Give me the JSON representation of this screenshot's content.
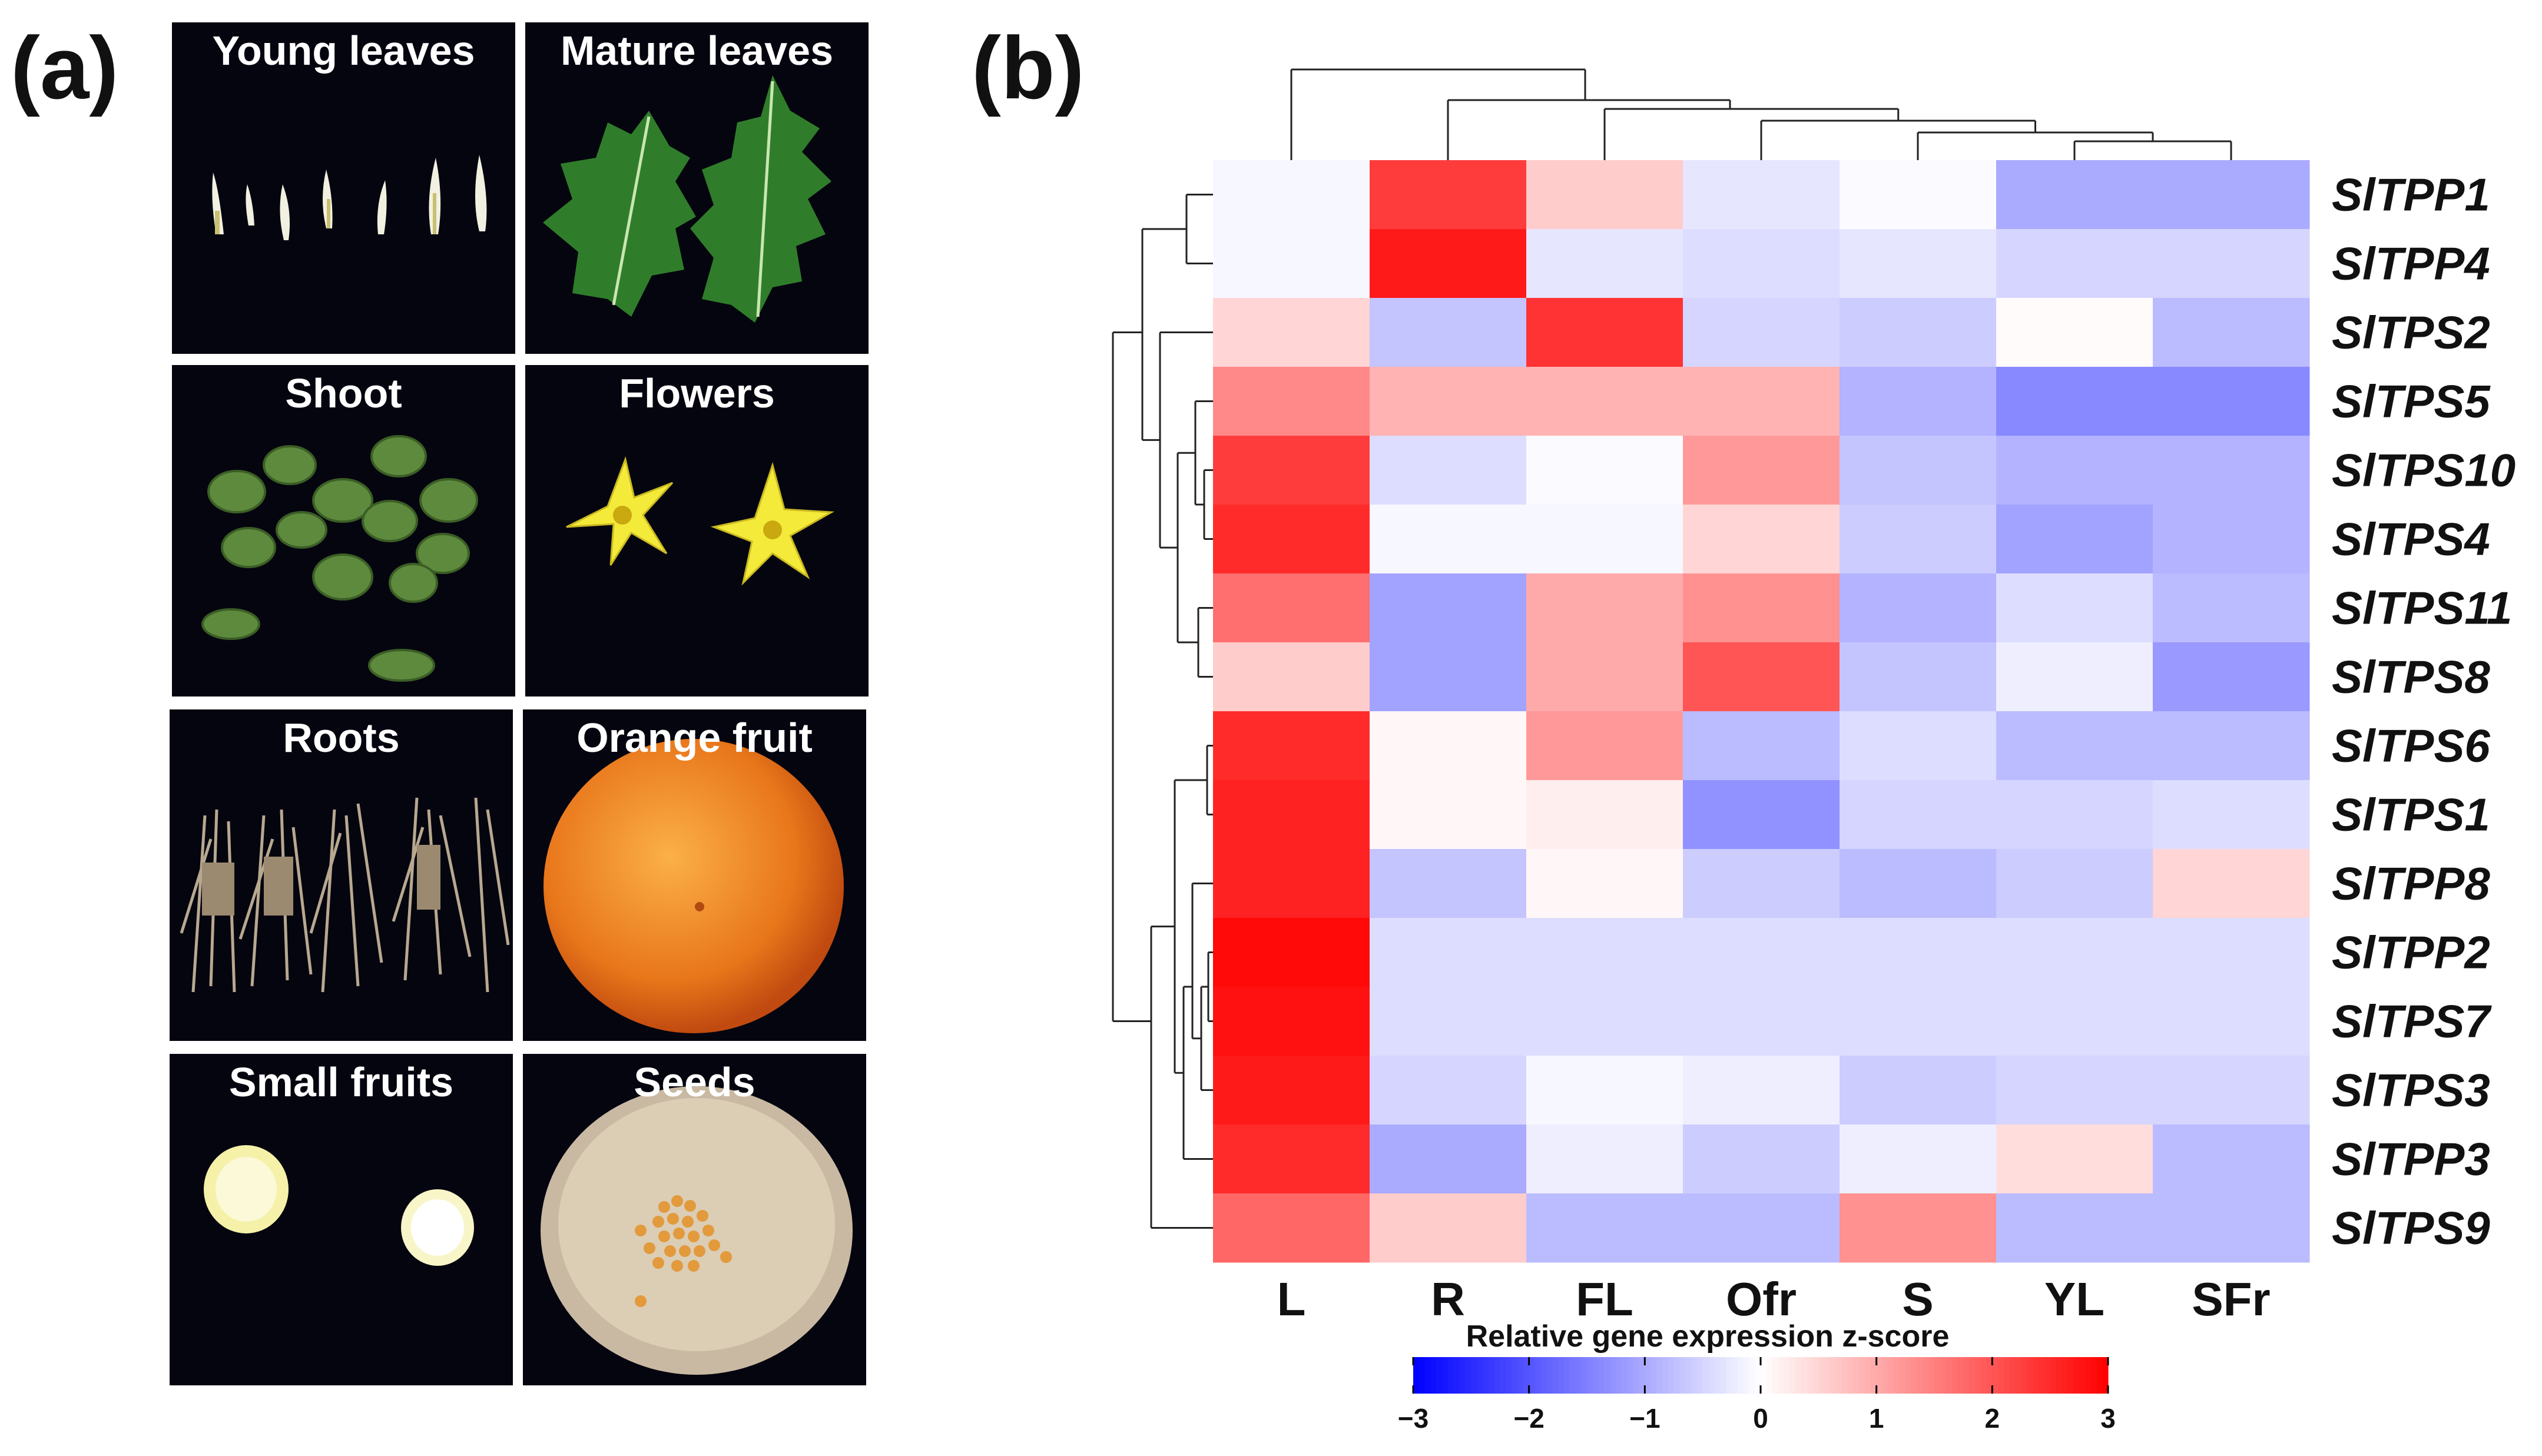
{
  "panels": {
    "a_label": "(a)",
    "b_label": "(b)"
  },
  "photos": [
    {
      "title": "Young leaves",
      "content": "young-leaves"
    },
    {
      "title": "Mature leaves",
      "content": "mature-leaves"
    },
    {
      "title": "Shoot",
      "content": "shoot"
    },
    {
      "title": "Flowers",
      "content": "flowers"
    },
    {
      "title": "Roots",
      "content": "roots"
    },
    {
      "title": "Orange fruit",
      "content": "orange-fruit"
    },
    {
      "title": "Small fruits",
      "content": "small-fruits"
    },
    {
      "title": "Seeds",
      "content": "seeds"
    }
  ],
  "chart_data": {
    "type": "heatmap",
    "columns": [
      "L",
      "R",
      "FL",
      "Ofr",
      "S",
      "YL",
      "SFr"
    ],
    "rows": [
      "SlTPP1",
      "SlTPP4",
      "SlTPS2",
      "SlTPS5",
      "SlTPS10",
      "SlTPS4",
      "SlTPS11",
      "SlTPS8",
      "SlTPS6",
      "SlTPS1",
      "SlTPP8",
      "SlTPP2",
      "SlTPS7",
      "SlTPS3",
      "SlTPP3",
      "SlTPS9"
    ],
    "values": [
      [
        -0.1,
        2.3,
        0.6,
        -0.3,
        -0.05,
        -1.0,
        -1.0
      ],
      [
        -0.1,
        2.7,
        -0.3,
        -0.4,
        -0.3,
        -0.5,
        -0.5
      ],
      [
        0.5,
        -0.7,
        2.4,
        -0.5,
        -0.6,
        0.05,
        -0.8
      ],
      [
        1.4,
        0.9,
        0.9,
        0.9,
        -0.9,
        -1.4,
        -1.4
      ],
      [
        2.3,
        -0.4,
        -0.05,
        1.2,
        -0.7,
        -0.9,
        -0.9
      ],
      [
        2.5,
        -0.1,
        -0.1,
        0.5,
        -0.6,
        -1.1,
        -0.9
      ],
      [
        1.7,
        -1.1,
        1.0,
        1.3,
        -0.9,
        -0.4,
        -0.8
      ],
      [
        0.6,
        -1.1,
        1.0,
        2.0,
        -0.7,
        -0.2,
        -1.2
      ],
      [
        2.5,
        0.1,
        1.2,
        -0.8,
        -0.4,
        -0.8,
        -0.8
      ],
      [
        2.6,
        0.1,
        0.2,
        -1.3,
        -0.5,
        -0.5,
        -0.4
      ],
      [
        2.6,
        -0.7,
        0.1,
        -0.6,
        -0.8,
        -0.6,
        0.5
      ],
      [
        2.9,
        -0.4,
        -0.4,
        -0.4,
        -0.4,
        -0.4,
        -0.4
      ],
      [
        2.8,
        -0.4,
        -0.4,
        -0.4,
        -0.4,
        -0.4,
        -0.4
      ],
      [
        2.7,
        -0.5,
        -0.1,
        -0.2,
        -0.6,
        -0.5,
        -0.5
      ],
      [
        2.5,
        -1.0,
        -0.2,
        -0.6,
        -0.2,
        0.4,
        -0.8
      ],
      [
        1.8,
        0.6,
        -0.8,
        -0.8,
        1.3,
        -0.8,
        -0.8
      ]
    ],
    "colorbar": {
      "title": "Relative gene expression z-score",
      "min": -3,
      "max": 3,
      "ticks": [
        "−3",
        "−2",
        "−1",
        "0",
        "1",
        "2",
        "3"
      ],
      "low_color": "#0000ff",
      "mid_color": "#ffffff",
      "high_color": "#ff0000"
    },
    "column_dendrogram": true,
    "row_dendrogram": true
  }
}
